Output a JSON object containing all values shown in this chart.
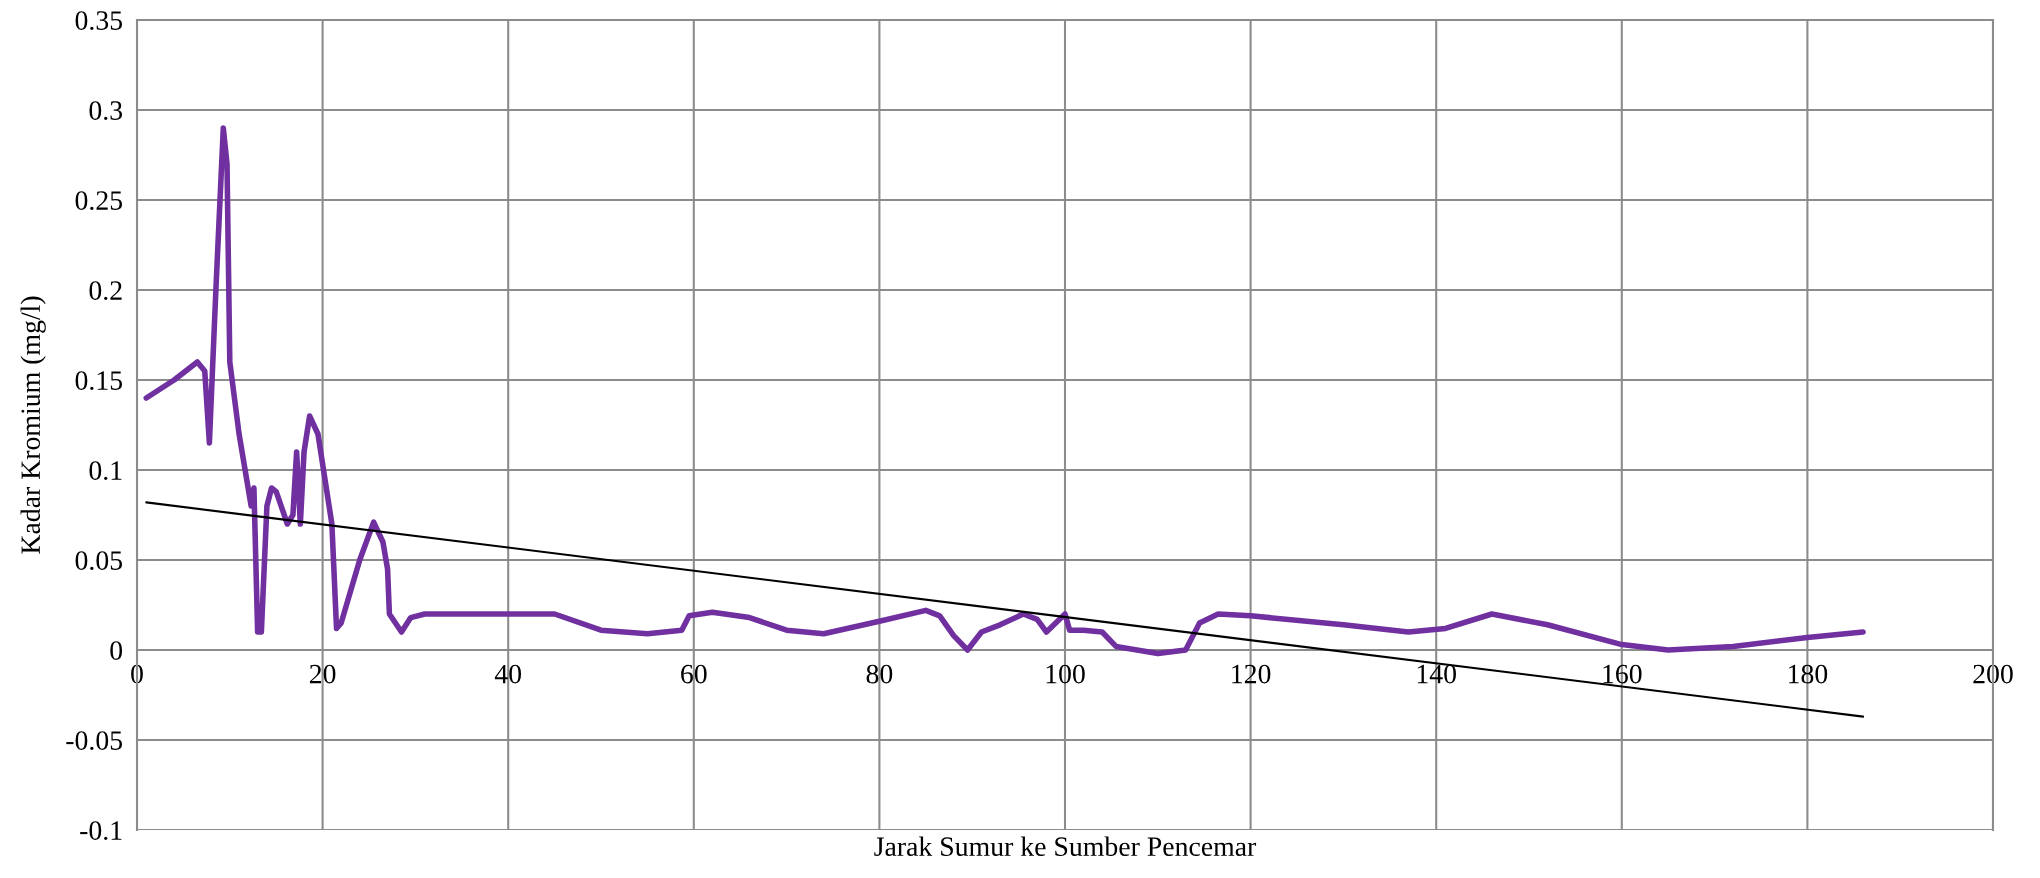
{
  "chart_data": {
    "type": "line",
    "xlabel": "Jarak Sumur ke Sumber Pencemar",
    "ylabel": "Kadar Kromium (mg/l)",
    "xlim": [
      0,
      200
    ],
    "xticks": [
      0,
      20,
      40,
      60,
      80,
      100,
      120,
      140,
      160,
      180,
      200
    ],
    "ylim": [
      -0.1,
      0.35
    ],
    "yticks": [
      -0.1,
      -0.05,
      0,
      0.05,
      0.1,
      0.15,
      0.2,
      0.25,
      0.3,
      0.35
    ],
    "grid": true,
    "marker": "none",
    "line_style": "solid",
    "series": [
      {
        "color": "#7030a0",
        "x": [
          1,
          4,
          6.5,
          7.3,
          7.8,
          8.5,
          9.3,
          9.7,
          10,
          11,
          12.3,
          12.6,
          13,
          13.4,
          14,
          14.5,
          15,
          16.2,
          16.8,
          17.2,
          17.6,
          18,
          18.6,
          19.5,
          21,
          21.5,
          22,
          24,
          25.5,
          26.5,
          27,
          27.2,
          28.5,
          29.5,
          31,
          40,
          45,
          50,
          55,
          58.7,
          59.5,
          62,
          66,
          70,
          74,
          80,
          85,
          86.5,
          88,
          89.5,
          91,
          93,
          95.5,
          97,
          98,
          99,
          100,
          100.5,
          102,
          104,
          105.5,
          110,
          113,
          114.5,
          116.5,
          120,
          130,
          137,
          141,
          146,
          152,
          160,
          165,
          172,
          180,
          186
        ],
        "values": [
          0.14,
          0.15,
          0.16,
          0.155,
          0.115,
          0.2,
          0.29,
          0.27,
          0.16,
          0.12,
          0.08,
          0.09,
          0.01,
          0.01,
          0.08,
          0.09,
          0.088,
          0.07,
          0.075,
          0.11,
          0.07,
          0.11,
          0.13,
          0.12,
          0.07,
          0.012,
          0.015,
          0.05,
          0.071,
          0.06,
          0.045,
          0.02,
          0.01,
          0.018,
          0.02,
          0.02,
          0.02,
          0.011,
          0.009,
          0.011,
          0.019,
          0.021,
          0.018,
          0.011,
          0.009,
          0.016,
          0.022,
          0.019,
          0.008,
          0,
          0.01,
          0.014,
          0.02,
          0.017,
          0.01,
          0.015,
          0.02,
          0.011,
          0.011,
          0.01,
          0.002,
          -0.002,
          0,
          0.015,
          0.02,
          0.019,
          0.014,
          0.01,
          0.012,
          0.02,
          0.014,
          0.003,
          0,
          0.002,
          0.007,
          0.01
        ]
      },
      {
        "type": "line",
        "color": "#000000",
        "x": [
          1,
          186
        ],
        "values": [
          0.082,
          -0.037
        ]
      }
    ]
  }
}
